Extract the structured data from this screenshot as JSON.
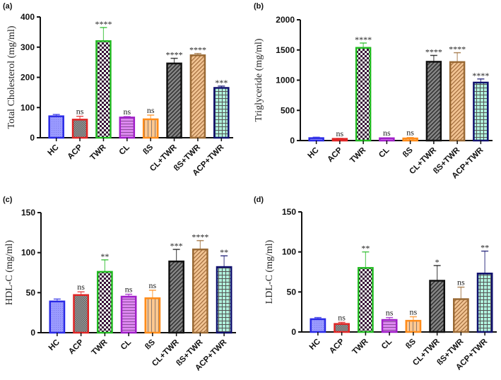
{
  "chart_data": [
    {
      "type": "bar",
      "panel_label": "(a)",
      "ylabel": "Total Cholesterol (mg/ml)",
      "ylim": [
        0,
        400
      ],
      "yticks": [
        0,
        100,
        200,
        300,
        400
      ],
      "categories": [
        "HC",
        "ACP",
        "TWR",
        "CL",
        "ßS",
        "CL+TWR",
        "ßS+TWR",
        "ACP+TWR"
      ],
      "values": [
        71,
        60,
        320,
        67,
        61,
        246,
        273,
        165
      ],
      "error_upper": [
        77,
        71,
        365,
        70,
        75,
        263,
        279,
        171
      ],
      "significance": [
        "",
        "ns",
        "****",
        "ns",
        "ns",
        "****",
        "****",
        "***"
      ]
    },
    {
      "type": "bar",
      "panel_label": "(b)",
      "ylabel": "Triglyceride (mg/ml)",
      "ylim": [
        0,
        2000
      ],
      "yticks": [
        0,
        500,
        1000,
        1500,
        2000
      ],
      "categories": [
        "HC",
        "ACP",
        "TWR",
        "CL",
        "ßS",
        "CL+TWR",
        "ßS+TWR",
        "ACP+TWR"
      ],
      "values": [
        40,
        28,
        1535,
        38,
        35,
        1305,
        1300,
        960
      ],
      "error_upper": [
        55,
        35,
        1615,
        45,
        50,
        1410,
        1455,
        1020
      ],
      "significance": [
        "",
        "ns",
        "****",
        "ns",
        "ns",
        "****",
        "****",
        "****"
      ]
    },
    {
      "type": "bar",
      "panel_label": "(c)",
      "ylabel": "HDL-C (mg/ml)",
      "ylim": [
        0,
        150
      ],
      "yticks": [
        0,
        50,
        100,
        150
      ],
      "categories": [
        "HC",
        "ACP",
        "TWR",
        "CL",
        "ßS",
        "CL+TWR",
        "ßS+TWR",
        "ACP+TWR"
      ],
      "values": [
        39,
        47,
        76,
        45,
        43,
        89,
        104,
        82
      ],
      "error_upper": [
        42,
        51,
        91,
        48,
        53,
        104,
        115,
        96
      ],
      "significance": [
        "",
        "ns",
        "**",
        "ns",
        "ns",
        "***",
        "****",
        "**"
      ]
    },
    {
      "type": "bar",
      "panel_label": "(d)",
      "ylabel": "LDL-C (mg/ml)",
      "ylim": [
        0,
        150
      ],
      "yticks": [
        0,
        50,
        100,
        150
      ],
      "categories": [
        "HC",
        "ACP",
        "TWR",
        "CL",
        "ßS",
        "CL+TWR",
        "ßS+TWR",
        "ACP+TWR"
      ],
      "values": [
        16,
        10,
        80,
        15,
        14,
        64,
        41,
        73
      ],
      "error_upper": [
        18,
        12,
        100,
        18,
        19,
        83,
        56,
        101
      ],
      "significance": [
        "",
        "ns",
        "**",
        "ns",
        "ns",
        "*",
        "ns",
        "**"
      ]
    }
  ],
  "colors": {
    "borders": [
      "#2a2ae6",
      "#e02525",
      "#22bb22",
      "#a020c8",
      "#ff8c1a",
      "#111111",
      "#9a6a35",
      "#10106e"
    ],
    "fills": [
      "#9a9aff",
      "#8a8a8a",
      "#ffffff",
      "#dd88f0",
      "#ffc890",
      "#777777",
      "#f2c493",
      "#b0f0dc"
    ]
  }
}
